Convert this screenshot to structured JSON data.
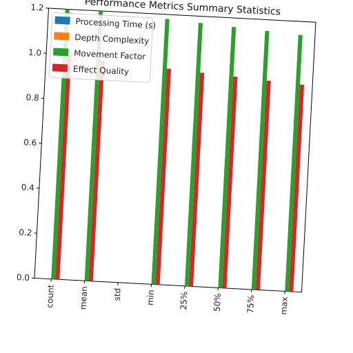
{
  "chart_data": {
    "type": "bar",
    "title": "Performance Metrics Summary Statistics",
    "xlabel": "",
    "ylabel": "",
    "categories": [
      "count",
      "mean",
      "std",
      "min",
      "25%",
      "50%",
      "75%",
      "max"
    ],
    "ylim": [
      0,
      1.2
    ],
    "yticks": [
      "0.0",
      "0.2",
      "0.4",
      "0.6",
      "0.8",
      "1.0",
      "1.2"
    ],
    "grid": false,
    "legend_position": "top-left",
    "series": [
      {
        "name": "Processing Time (s)",
        "color": "#1f77b4",
        "values": [
          0,
          0,
          0,
          0,
          0,
          0,
          0,
          0
        ]
      },
      {
        "name": "Depth Complexity",
        "color": "#ff7f0e",
        "values": [
          0,
          0,
          0,
          0,
          0,
          0,
          0,
          0
        ]
      },
      {
        "name": "Movement Factor",
        "color": "#2ca02c",
        "values": [
          1.2,
          1.2,
          0,
          1.18,
          1.17,
          1.16,
          1.15,
          1.14
        ]
      },
      {
        "name": "Effect Quality",
        "color": "#d62728",
        "values": [
          1.0,
          0.98,
          0,
          0.96,
          0.95,
          0.94,
          0.93,
          0.92
        ]
      }
    ]
  }
}
